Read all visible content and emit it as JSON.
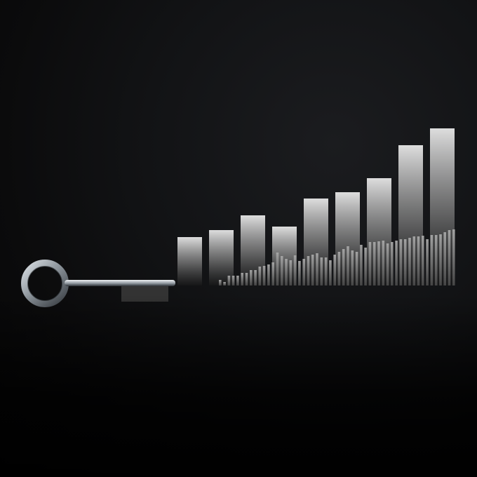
{
  "scene": {
    "subject": "key",
    "background_color": "#0b0b0c",
    "bar_color_light": "#d9d9d9",
    "bar_color_dark": "#1a1a1a",
    "key_color": "#9aa3aa"
  },
  "chart_data": {
    "type": "bar",
    "series": [
      {
        "values": [
          69,
          79,
          100,
          84,
          124,
          133,
          153,
          200,
          224
        ]
      },
      {
        "values": [
          8,
          5,
          14,
          14,
          14,
          18,
          18,
          22,
          22,
          27,
          28,
          30,
          33,
          47,
          42,
          38,
          36,
          43,
          35,
          38,
          42,
          44,
          46,
          40,
          40,
          36,
          44,
          48,
          52,
          56,
          50,
          48,
          58,
          54,
          62,
          62,
          63,
          64,
          60,
          62,
          64,
          66,
          66,
          68,
          70,
          70,
          71,
          66,
          72,
          72,
          73,
          76,
          79,
          80
        ]
      }
    ]
  }
}
